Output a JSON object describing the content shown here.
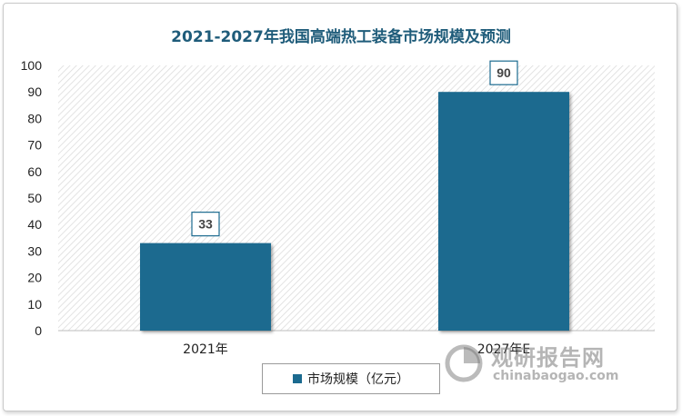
{
  "chart_data": {
    "type": "bar",
    "title": "2021-2027年我国高端热工装备市场规模及预测",
    "categories": [
      "2021年",
      "2027年E"
    ],
    "series": [
      {
        "name": "市场规模（亿元）",
        "values": [
          33,
          90
        ]
      }
    ],
    "ylim": [
      0,
      100
    ],
    "yticks": [
      0,
      10,
      20,
      30,
      40,
      50,
      60,
      70,
      80,
      90,
      100
    ],
    "data_labels": [
      "33",
      "90"
    ],
    "bar_color": "#1b6a8f",
    "background_pattern": "diagonal-hatch",
    "grid": false,
    "legend_position": "bottom"
  },
  "legend": {
    "label": "市场规模（亿元）"
  },
  "watermark": {
    "name": "观研报告网",
    "url": "chinabaogao.com",
    "icon": "pie-chart-logo-icon"
  }
}
